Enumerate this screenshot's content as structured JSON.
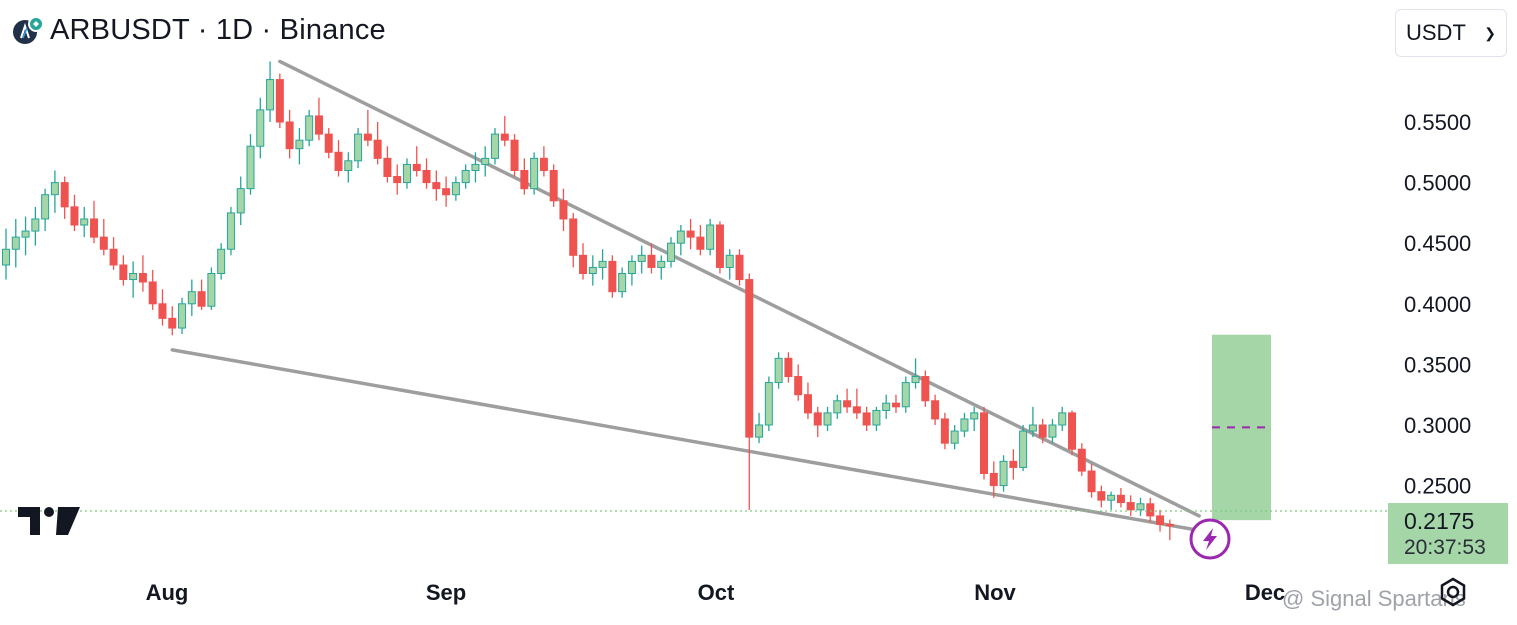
{
  "header": {
    "title": "ARBUSDT · 1D · Binance"
  },
  "currency_selector": {
    "value": "USDT"
  },
  "price_label": {
    "price": "0.2175",
    "countdown": "20:37:53"
  },
  "watermark": {
    "text": "@ Signal Spartans"
  },
  "colors": {
    "up": "#26a69a",
    "up_fill": "#a5d6a7",
    "down": "#ef5350",
    "trendline": "#9e9e9e",
    "target_zone": "#a5d6a7",
    "signal": "#9c27b0"
  },
  "chart_data": {
    "type": "candlestick",
    "yaxis": {
      "ticks": [
        0.55,
        0.5,
        0.45,
        0.4,
        0.35,
        0.3,
        0.25
      ],
      "tick_labels": [
        "0.5500",
        "0.5000",
        "0.4500",
        "0.4000",
        "0.3500",
        "0.3000",
        "0.2500"
      ],
      "range": [
        0.2,
        0.6
      ],
      "position": "right"
    },
    "xaxis": {
      "tick_labels": [
        "Aug",
        "Sep",
        "Oct",
        "Nov",
        "Dec"
      ]
    },
    "last_price": 0.2175,
    "candles": [
      [
        0.432,
        0.462,
        0.42,
        0.445
      ],
      [
        0.445,
        0.47,
        0.43,
        0.455
      ],
      [
        0.455,
        0.472,
        0.44,
        0.46
      ],
      [
        0.46,
        0.48,
        0.448,
        0.47
      ],
      [
        0.47,
        0.495,
        0.46,
        0.49
      ],
      [
        0.49,
        0.51,
        0.475,
        0.5
      ],
      [
        0.5,
        0.505,
        0.47,
        0.48
      ],
      [
        0.48,
        0.49,
        0.46,
        0.465
      ],
      [
        0.465,
        0.48,
        0.455,
        0.47
      ],
      [
        0.47,
        0.485,
        0.45,
        0.455
      ],
      [
        0.455,
        0.47,
        0.44,
        0.445
      ],
      [
        0.445,
        0.455,
        0.428,
        0.432
      ],
      [
        0.432,
        0.44,
        0.415,
        0.42
      ],
      [
        0.42,
        0.435,
        0.405,
        0.425
      ],
      [
        0.425,
        0.44,
        0.41,
        0.418
      ],
      [
        0.418,
        0.428,
        0.395,
        0.4
      ],
      [
        0.4,
        0.412,
        0.382,
        0.388
      ],
      [
        0.388,
        0.398,
        0.374,
        0.38
      ],
      [
        0.38,
        0.405,
        0.375,
        0.4
      ],
      [
        0.4,
        0.42,
        0.39,
        0.41
      ],
      [
        0.41,
        0.42,
        0.395,
        0.398
      ],
      [
        0.398,
        0.43,
        0.395,
        0.425
      ],
      [
        0.425,
        0.45,
        0.42,
        0.445
      ],
      [
        0.445,
        0.48,
        0.44,
        0.475
      ],
      [
        0.475,
        0.505,
        0.465,
        0.495
      ],
      [
        0.495,
        0.54,
        0.49,
        0.53
      ],
      [
        0.53,
        0.57,
        0.52,
        0.56
      ],
      [
        0.56,
        0.6,
        0.55,
        0.585
      ],
      [
        0.585,
        0.59,
        0.545,
        0.55
      ],
      [
        0.55,
        0.56,
        0.52,
        0.528
      ],
      [
        0.528,
        0.545,
        0.515,
        0.535
      ],
      [
        0.535,
        0.56,
        0.53,
        0.555
      ],
      [
        0.555,
        0.57,
        0.535,
        0.54
      ],
      [
        0.54,
        0.545,
        0.52,
        0.525
      ],
      [
        0.525,
        0.535,
        0.505,
        0.51
      ],
      [
        0.51,
        0.525,
        0.5,
        0.518
      ],
      [
        0.518,
        0.545,
        0.512,
        0.54
      ],
      [
        0.54,
        0.56,
        0.53,
        0.535
      ],
      [
        0.535,
        0.55,
        0.515,
        0.52
      ],
      [
        0.52,
        0.53,
        0.5,
        0.505
      ],
      [
        0.505,
        0.515,
        0.49,
        0.5
      ],
      [
        0.5,
        0.52,
        0.495,
        0.515
      ],
      [
        0.515,
        0.53,
        0.505,
        0.51
      ],
      [
        0.51,
        0.52,
        0.495,
        0.5
      ],
      [
        0.5,
        0.51,
        0.485,
        0.495
      ],
      [
        0.495,
        0.505,
        0.48,
        0.49
      ],
      [
        0.49,
        0.505,
        0.485,
        0.5
      ],
      [
        0.5,
        0.515,
        0.495,
        0.51
      ],
      [
        0.51,
        0.525,
        0.5,
        0.515
      ],
      [
        0.515,
        0.53,
        0.505,
        0.52
      ],
      [
        0.52,
        0.545,
        0.515,
        0.54
      ],
      [
        0.54,
        0.555,
        0.53,
        0.535
      ],
      [
        0.535,
        0.54,
        0.505,
        0.51
      ],
      [
        0.51,
        0.52,
        0.49,
        0.495
      ],
      [
        0.495,
        0.525,
        0.49,
        0.52
      ],
      [
        0.52,
        0.53,
        0.505,
        0.51
      ],
      [
        0.51,
        0.515,
        0.48,
        0.485
      ],
      [
        0.485,
        0.495,
        0.46,
        0.47
      ],
      [
        0.47,
        0.475,
        0.43,
        0.44
      ],
      [
        0.44,
        0.45,
        0.42,
        0.425
      ],
      [
        0.425,
        0.44,
        0.415,
        0.43
      ],
      [
        0.43,
        0.445,
        0.42,
        0.435
      ],
      [
        0.435,
        0.44,
        0.405,
        0.41
      ],
      [
        0.41,
        0.43,
        0.405,
        0.425
      ],
      [
        0.425,
        0.44,
        0.415,
        0.435
      ],
      [
        0.435,
        0.448,
        0.425,
        0.44
      ],
      [
        0.44,
        0.45,
        0.425,
        0.43
      ],
      [
        0.43,
        0.44,
        0.42,
        0.435
      ],
      [
        0.435,
        0.455,
        0.43,
        0.45
      ],
      [
        0.45,
        0.465,
        0.44,
        0.46
      ],
      [
        0.46,
        0.47,
        0.445,
        0.455
      ],
      [
        0.455,
        0.465,
        0.44,
        0.445
      ],
      [
        0.445,
        0.47,
        0.44,
        0.465
      ],
      [
        0.465,
        0.468,
        0.425,
        0.43
      ],
      [
        0.43,
        0.445,
        0.42,
        0.44
      ],
      [
        0.44,
        0.445,
        0.415,
        0.42
      ],
      [
        0.42,
        0.425,
        0.23,
        0.29
      ],
      [
        0.29,
        0.31,
        0.285,
        0.3
      ],
      [
        0.3,
        0.34,
        0.295,
        0.335
      ],
      [
        0.335,
        0.36,
        0.33,
        0.355
      ],
      [
        0.355,
        0.36,
        0.335,
        0.34
      ],
      [
        0.34,
        0.35,
        0.32,
        0.325
      ],
      [
        0.325,
        0.335,
        0.305,
        0.31
      ],
      [
        0.31,
        0.315,
        0.29,
        0.3
      ],
      [
        0.3,
        0.315,
        0.295,
        0.31
      ],
      [
        0.31,
        0.325,
        0.305,
        0.32
      ],
      [
        0.32,
        0.33,
        0.31,
        0.315
      ],
      [
        0.315,
        0.33,
        0.305,
        0.31
      ],
      [
        0.31,
        0.315,
        0.295,
        0.3
      ],
      [
        0.3,
        0.315,
        0.295,
        0.312
      ],
      [
        0.312,
        0.325,
        0.305,
        0.318
      ],
      [
        0.318,
        0.325,
        0.31,
        0.315
      ],
      [
        0.315,
        0.34,
        0.31,
        0.335
      ],
      [
        0.335,
        0.355,
        0.33,
        0.34
      ],
      [
        0.34,
        0.345,
        0.315,
        0.32
      ],
      [
        0.32,
        0.325,
        0.3,
        0.305
      ],
      [
        0.305,
        0.31,
        0.28,
        0.285
      ],
      [
        0.285,
        0.3,
        0.28,
        0.295
      ],
      [
        0.295,
        0.31,
        0.29,
        0.305
      ],
      [
        0.305,
        0.315,
        0.295,
        0.31
      ],
      [
        0.31,
        0.315,
        0.255,
        0.26
      ],
      [
        0.26,
        0.27,
        0.24,
        0.25
      ],
      [
        0.25,
        0.275,
        0.245,
        0.27
      ],
      [
        0.27,
        0.28,
        0.255,
        0.265
      ],
      [
        0.265,
        0.3,
        0.262,
        0.295
      ],
      [
        0.295,
        0.315,
        0.29,
        0.3
      ],
      [
        0.3,
        0.305,
        0.285,
        0.29
      ],
      [
        0.29,
        0.305,
        0.285,
        0.3
      ],
      [
        0.3,
        0.315,
        0.295,
        0.31
      ],
      [
        0.31,
        0.312,
        0.275,
        0.28
      ],
      [
        0.28,
        0.285,
        0.258,
        0.262
      ],
      [
        0.262,
        0.268,
        0.24,
        0.245
      ],
      [
        0.245,
        0.25,
        0.232,
        0.238
      ],
      [
        0.238,
        0.245,
        0.23,
        0.242
      ],
      [
        0.242,
        0.248,
        0.232,
        0.236
      ],
      [
        0.236,
        0.242,
        0.225,
        0.23
      ],
      [
        0.23,
        0.24,
        0.225,
        0.235
      ],
      [
        0.235,
        0.24,
        0.22,
        0.225
      ],
      [
        0.225,
        0.23,
        0.212,
        0.218
      ],
      [
        0.218,
        0.222,
        0.205,
        0.2175
      ]
    ],
    "trendlines": [
      {
        "name": "upper",
        "from": [
          28,
          0.6
        ],
        "to": [
          122,
          0.225
        ]
      },
      {
        "name": "lower",
        "from": [
          17,
          0.362
        ],
        "to": [
          122,
          0.213
        ]
      }
    ],
    "target_zone": {
      "low": 0.2215,
      "high": 0.3745,
      "mid": 0.298
    }
  }
}
